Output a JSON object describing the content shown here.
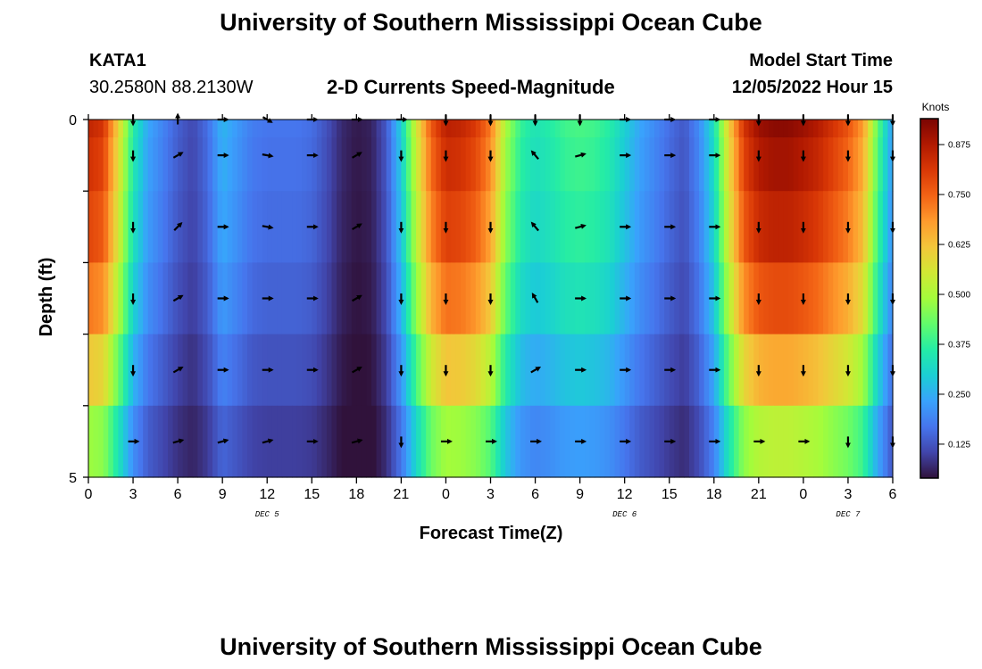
{
  "header": {
    "title": "University of Southern Mississippi Ocean Cube",
    "station_id": "KATA1",
    "station_coords": "30.2580N  88.2130W",
    "chart_title": "2-D Currents Speed-Magnitude",
    "model_label": "Model Start Time",
    "model_time": "12/05/2022 Hour 15"
  },
  "footer": {
    "title": "University of Southern Mississippi Ocean Cube"
  },
  "colors": {
    "scale": [
      "#30123b",
      "#4145ab",
      "#4675ed",
      "#39a2fc",
      "#1bcfd4",
      "#24eca6",
      "#61fc6c",
      "#a4fc3b",
      "#d1e834",
      "#f3c63a",
      "#fe9b2d",
      "#f36315",
      "#d93806",
      "#b11901",
      "#7a0403"
    ]
  },
  "chart_data": {
    "type": "heatmap",
    "title": "2-D Currents Speed-Magnitude",
    "xlabel": "Forecast Time(Z)",
    "ylabel": "Depth (ft)",
    "x_ticks": [
      "0",
      "3",
      "6",
      "9",
      "12",
      "15",
      "18",
      "21",
      "0",
      "3",
      "6",
      "9",
      "12",
      "15",
      "18",
      "21",
      "0",
      "3",
      "6"
    ],
    "y_ticks": [
      "0",
      "5"
    ],
    "x_range_hours": [
      0,
      54
    ],
    "y_range_ft": [
      0,
      5
    ],
    "date_labels": [
      {
        "text": "DEC 5",
        "hour": 12
      },
      {
        "text": "DEC 6",
        "hour": 36
      },
      {
        "text": "DEC 7",
        "hour": 51
      }
    ],
    "colorbar": {
      "label": "Knots",
      "ticks": [
        "0.125",
        "0.250",
        "0.375",
        "0.500",
        "0.625",
        "0.750",
        "0.875"
      ],
      "tick_values": [
        0.125,
        0.25,
        0.375,
        0.5,
        0.625,
        0.75,
        0.875
      ],
      "range": [
        0.04,
        0.94
      ]
    },
    "depth_levels_ft": [
      0,
      0.5,
      1.5,
      2.5,
      3.5,
      4.5
    ],
    "speed_knots_profile": {
      "hours": [
        0,
        1,
        2,
        3,
        4,
        5,
        6,
        7,
        8,
        9,
        10,
        11,
        12,
        13,
        14,
        15,
        16,
        17,
        18,
        19,
        20,
        21,
        22,
        23,
        24,
        25,
        26,
        27,
        28,
        29,
        30,
        31,
        32,
        33,
        34,
        35,
        36,
        37,
        38,
        39,
        40,
        41,
        42,
        43,
        44,
        45,
        46,
        47,
        48,
        49,
        50,
        51,
        52,
        53,
        54
      ],
      "speeds": [
        0.85,
        0.82,
        0.6,
        0.36,
        0.24,
        0.19,
        0.14,
        0.11,
        0.16,
        0.26,
        0.22,
        0.18,
        0.17,
        0.17,
        0.17,
        0.16,
        0.12,
        0.07,
        0.05,
        0.06,
        0.13,
        0.3,
        0.55,
        0.76,
        0.86,
        0.85,
        0.81,
        0.72,
        0.5,
        0.38,
        0.34,
        0.36,
        0.39,
        0.4,
        0.39,
        0.36,
        0.3,
        0.24,
        0.2,
        0.16,
        0.13,
        0.2,
        0.33,
        0.6,
        0.82,
        0.9,
        0.92,
        0.92,
        0.9,
        0.87,
        0.82,
        0.77,
        0.68,
        0.42,
        0.22
      ]
    },
    "depth_scale": [
      1.0,
      0.97,
      0.93,
      0.85,
      0.72,
      0.57
    ],
    "arrow_hours": [
      3,
      6,
      9,
      12,
      15,
      18,
      21,
      24,
      27,
      30,
      33,
      36,
      39,
      42,
      45,
      48,
      51,
      54
    ],
    "arrow_directions_deg": [
      [
        180,
        0,
        90,
        120,
        90,
        90,
        90,
        180,
        180,
        180,
        180,
        90,
        90,
        90,
        180,
        180,
        180,
        180
      ],
      [
        180,
        60,
        90,
        100,
        90,
        60,
        180,
        180,
        180,
        -40,
        75,
        90,
        90,
        90,
        180,
        180,
        180,
        180
      ],
      [
        180,
        45,
        90,
        100,
        90,
        60,
        180,
        180,
        180,
        -40,
        75,
        90,
        90,
        90,
        180,
        180,
        180,
        180
      ],
      [
        180,
        60,
        90,
        90,
        90,
        60,
        180,
        180,
        180,
        -30,
        90,
        90,
        90,
        90,
        180,
        180,
        180,
        180
      ],
      [
        180,
        60,
        90,
        90,
        90,
        60,
        180,
        180,
        180,
        60,
        90,
        90,
        90,
        90,
        180,
        180,
        180,
        180
      ],
      [
        90,
        75,
        75,
        75,
        90,
        75,
        180,
        90,
        90,
        90,
        90,
        90,
        90,
        90,
        90,
        90,
        180,
        180
      ]
    ]
  }
}
